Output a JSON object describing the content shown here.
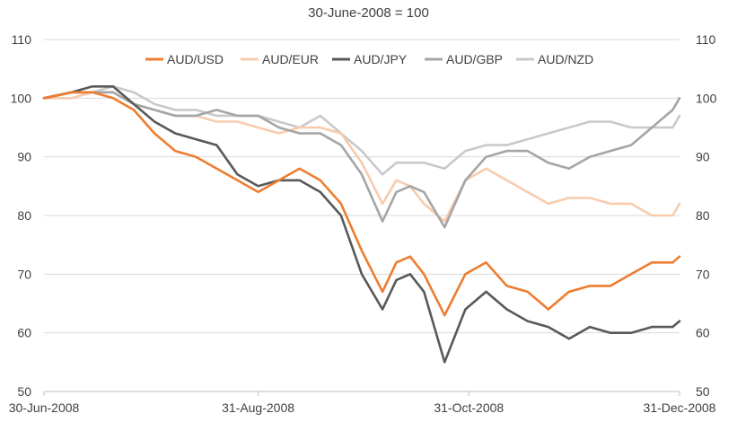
{
  "chart_data": {
    "type": "line",
    "subtitle": "30-June-2008 = 100",
    "ylim": [
      50,
      110
    ],
    "yticks": [
      50,
      60,
      70,
      80,
      90,
      100,
      110
    ],
    "x_tick_labels": [
      "30-Jun-2008",
      "31-Aug-2008",
      "31-Oct-2008",
      "31-Dec-2008"
    ],
    "x_tick_positions": [
      0,
      62,
      123,
      184
    ],
    "x_range": [
      0,
      184
    ],
    "grid": true,
    "legend_position": "top",
    "series": [
      {
        "name": "AUD/USD",
        "color": "#ed7d31",
        "x": [
          0,
          8,
          14,
          20,
          26,
          32,
          38,
          44,
          50,
          56,
          62,
          68,
          74,
          80,
          86,
          92,
          98,
          102,
          106,
          110,
          116,
          122,
          128,
          134,
          140,
          146,
          152,
          158,
          164,
          170,
          176,
          182,
          184
        ],
        "values": [
          100,
          101,
          101,
          100,
          98,
          94,
          91,
          90,
          88,
          86,
          84,
          86,
          88,
          86,
          82,
          74,
          67,
          72,
          73,
          70,
          63,
          70,
          72,
          68,
          67,
          64,
          67,
          68,
          68,
          70,
          72,
          72,
          73
        ]
      },
      {
        "name": "AUD/EUR",
        "color": "#f8cbad",
        "x": [
          0,
          8,
          14,
          20,
          26,
          32,
          38,
          44,
          50,
          56,
          62,
          68,
          74,
          80,
          86,
          92,
          98,
          102,
          106,
          110,
          116,
          122,
          128,
          134,
          140,
          146,
          152,
          158,
          164,
          170,
          176,
          182,
          184
        ],
        "values": [
          100,
          100,
          101,
          101,
          99,
          98,
          97,
          97,
          96,
          96,
          95,
          94,
          95,
          95,
          94,
          89,
          82,
          86,
          85,
          82,
          79,
          86,
          88,
          86,
          84,
          82,
          83,
          83,
          82,
          82,
          80,
          80,
          82
        ]
      },
      {
        "name": "AUD/JPY",
        "color": "#595959",
        "x": [
          0,
          8,
          14,
          20,
          26,
          32,
          38,
          44,
          50,
          56,
          62,
          68,
          74,
          80,
          86,
          92,
          98,
          102,
          106,
          110,
          116,
          122,
          128,
          134,
          140,
          146,
          152,
          158,
          164,
          170,
          176,
          182,
          184
        ],
        "values": [
          100,
          101,
          102,
          102,
          99,
          96,
          94,
          93,
          92,
          87,
          85,
          86,
          86,
          84,
          80,
          70,
          64,
          69,
          70,
          67,
          55,
          64,
          67,
          64,
          62,
          61,
          59,
          61,
          60,
          60,
          61,
          61,
          62
        ]
      },
      {
        "name": "AUD/GBP",
        "color": "#a5a5a5",
        "x": [
          0,
          8,
          14,
          20,
          26,
          32,
          38,
          44,
          50,
          56,
          62,
          68,
          74,
          80,
          86,
          92,
          98,
          102,
          106,
          110,
          116,
          122,
          128,
          134,
          140,
          146,
          152,
          158,
          164,
          170,
          176,
          182,
          184
        ],
        "values": [
          100,
          101,
          101,
          101,
          99,
          98,
          97,
          97,
          98,
          97,
          97,
          95,
          94,
          94,
          92,
          87,
          79,
          84,
          85,
          84,
          78,
          86,
          90,
          91,
          91,
          89,
          88,
          90,
          91,
          92,
          95,
          98,
          100
        ]
      },
      {
        "name": "AUD/NZD",
        "color": "#c9c9c9",
        "x": [
          0,
          8,
          14,
          20,
          26,
          32,
          38,
          44,
          50,
          56,
          62,
          68,
          74,
          80,
          86,
          92,
          98,
          102,
          106,
          110,
          116,
          122,
          128,
          134,
          140,
          146,
          152,
          158,
          164,
          170,
          176,
          182,
          184
        ],
        "values": [
          100,
          101,
          101,
          102,
          101,
          99,
          98,
          98,
          97,
          97,
          97,
          96,
          95,
          97,
          94,
          91,
          87,
          89,
          89,
          89,
          88,
          91,
          92,
          92,
          93,
          94,
          95,
          96,
          96,
          95,
          95,
          95,
          97
        ]
      }
    ]
  }
}
